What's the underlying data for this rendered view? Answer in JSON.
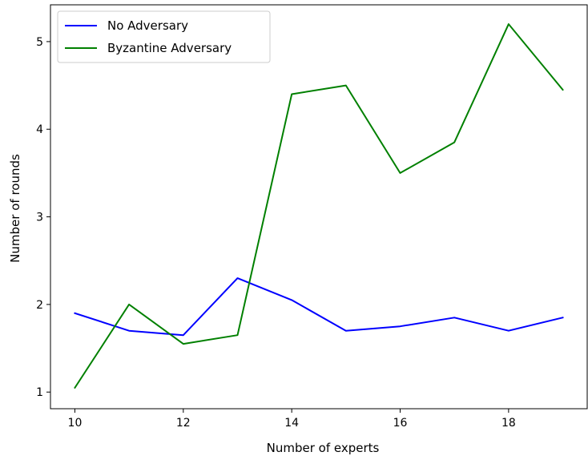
{
  "chart_data": {
    "type": "line",
    "xlabel": "Number of experts",
    "ylabel": "Number of rounds",
    "xlim": [
      9.55,
      19.45
    ],
    "ylim": [
      0.81,
      5.42
    ],
    "xticks": [
      10,
      12,
      14,
      16,
      18
    ],
    "yticks": [
      1,
      2,
      3,
      4,
      5
    ],
    "grid": false,
    "legend_position": "top-left",
    "x": [
      10,
      11,
      12,
      13,
      14,
      15,
      16,
      17,
      18,
      19
    ],
    "series": [
      {
        "name": "No Adversary",
        "color": "#0000ff",
        "values": [
          1.9,
          1.7,
          1.65,
          2.3,
          2.05,
          1.7,
          1.75,
          1.85,
          1.7,
          1.85
        ]
      },
      {
        "name": "Byzantine Adversary",
        "color": "#008000",
        "values": [
          1.05,
          2.0,
          1.55,
          1.65,
          4.4,
          4.5,
          3.5,
          3.85,
          5.2,
          4.45
        ]
      }
    ]
  }
}
